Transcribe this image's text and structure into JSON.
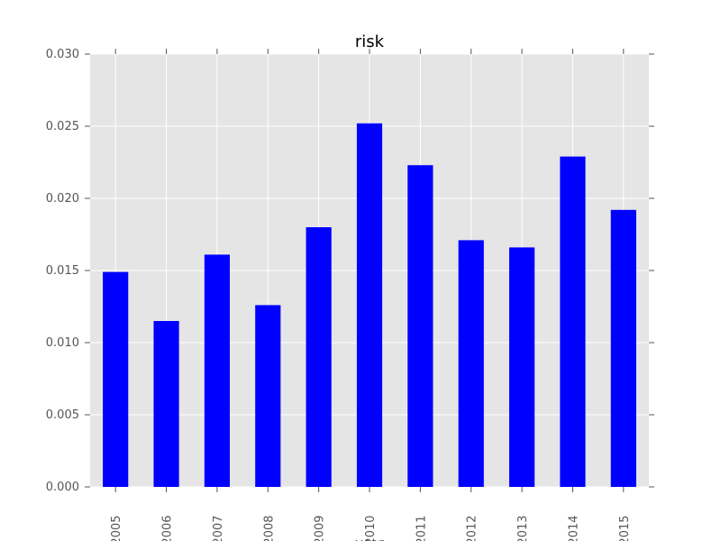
{
  "chart_data": {
    "type": "bar",
    "title": "risk",
    "xlabel": "year",
    "ylabel": "",
    "categories": [
      "2005",
      "2006",
      "2007",
      "2008",
      "2009",
      "2010",
      "2011",
      "2012",
      "2013",
      "2014",
      "2015"
    ],
    "values": [
      0.0149,
      0.0115,
      0.0161,
      0.0126,
      0.018,
      0.0252,
      0.0223,
      0.0171,
      0.0166,
      0.0229,
      0.0192
    ],
    "ylim": [
      0,
      0.03
    ],
    "yticks": [
      "0.000",
      "0.005",
      "0.010",
      "0.015",
      "0.020",
      "0.025",
      "0.030"
    ],
    "grid": true,
    "colors": {
      "bar": "#0000ff",
      "plot_background": "#e5e5e5",
      "grid": "#ffffff",
      "tick_label": "#555555"
    }
  }
}
